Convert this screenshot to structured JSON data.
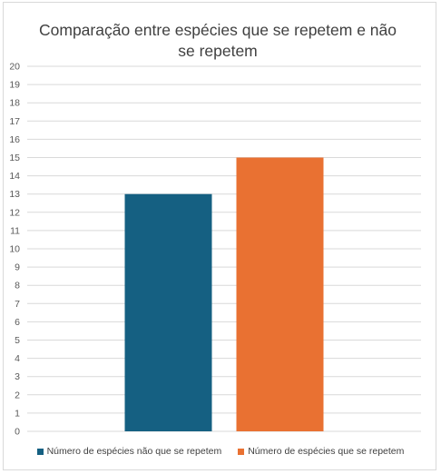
{
  "chart_data": {
    "type": "bar",
    "title": "Comparação entre espécies que se repetem e não se repetem",
    "xlabel": "",
    "ylabel": "",
    "ylim": [
      0,
      20
    ],
    "yticks": [
      0,
      1,
      2,
      3,
      4,
      5,
      6,
      7,
      8,
      9,
      10,
      11,
      12,
      13,
      14,
      15,
      16,
      17,
      18,
      19,
      20
    ],
    "grid": true,
    "legend_position": "bottom",
    "categories": [
      ""
    ],
    "series": [
      {
        "name": "Número de espécies não que se repetem",
        "values": [
          13
        ],
        "color": "#156082"
      },
      {
        "name": "Número de espécies que se repetem",
        "values": [
          15
        ],
        "color": "#E97132"
      }
    ]
  }
}
